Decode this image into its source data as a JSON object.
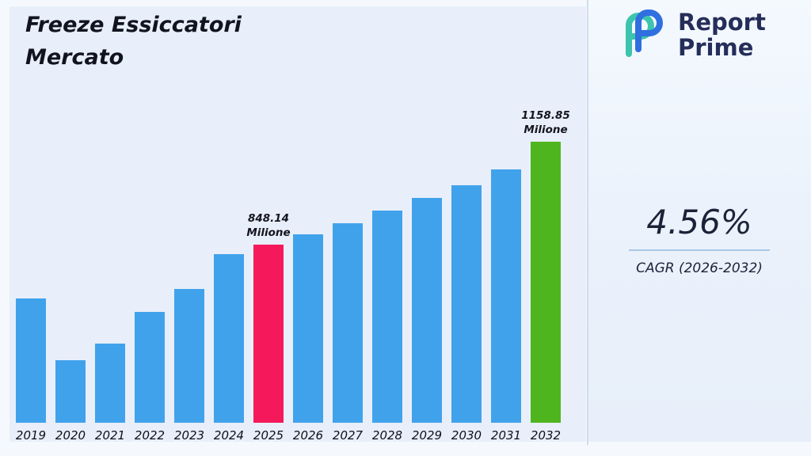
{
  "title": {
    "line1": "Freeze Essiccatori",
    "line2": "Mercato"
  },
  "brand": {
    "name_line1": "Report",
    "name_line2": "Prime",
    "text_color": "#252e59",
    "icon_teal": "#3cc4ae",
    "icon_blue": "#2f6fe0"
  },
  "right_panel": {
    "cagr_value": "4.56%",
    "cagr_label": "CAGR (2026-2032)",
    "underline_color": "#a9c7e9"
  },
  "chart_data": {
    "type": "bar",
    "title": "Freeze Essiccatori Mercato",
    "unit": "Milione",
    "categories": [
      "2019",
      "2020",
      "2021",
      "2022",
      "2023",
      "2024",
      "2025",
      "2026",
      "2027",
      "2028",
      "2029",
      "2030",
      "2031",
      "2032"
    ],
    "values": [
      685,
      500,
      550,
      645,
      715,
      820,
      848.14,
      880,
      912,
      950,
      990,
      1027,
      1075,
      1158.85
    ],
    "bar_color": "#41a2ec",
    "highlights": [
      {
        "category": "2025",
        "color": "#f5195c"
      },
      {
        "category": "2032",
        "color": "#4fb51e"
      }
    ],
    "annotations": [
      {
        "category": "2025",
        "lines": [
          "848.14",
          "Milione"
        ]
      },
      {
        "category": "2032",
        "lines": [
          "1158.85",
          "Milione"
        ]
      }
    ],
    "xlabel": "",
    "ylabel": "",
    "ylim": [
      310,
      1200
    ],
    "grid": false,
    "legend": false
  }
}
